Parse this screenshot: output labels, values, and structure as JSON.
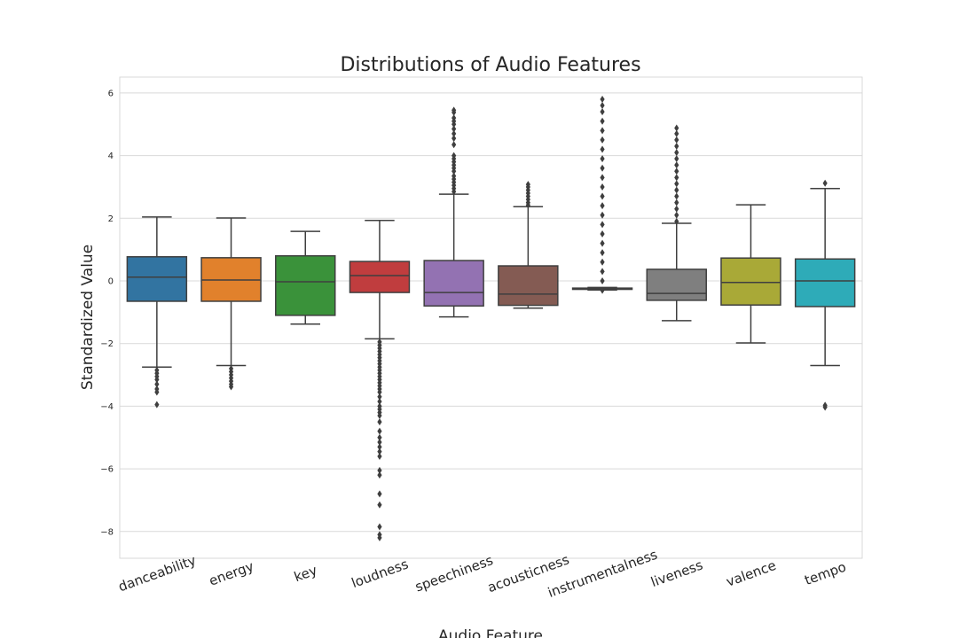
{
  "chart_data": {
    "type": "box",
    "title": "Distributions of Audio Features",
    "xlabel": "Audio Feature",
    "ylabel": "Standardized Value",
    "ylim": [
      -8.9,
      6.5
    ],
    "yticks": [
      6,
      4,
      2,
      0,
      -2,
      -4,
      -6,
      -8
    ],
    "ytick_labels": [
      "6",
      "4",
      "2",
      "0",
      "−2",
      "−4",
      "−6",
      "−8"
    ],
    "grid": true,
    "legend": "none",
    "categories": [
      "danceability",
      "energy",
      "key",
      "loudness",
      "speechiness",
      "acousticness",
      "instrumentalness",
      "liveness",
      "valence",
      "tempo"
    ],
    "boxes": [
      {
        "name": "danceability",
        "color": "#3274a1",
        "whisker_low": -2.75,
        "q1": -0.65,
        "median": 0.12,
        "q3": 0.77,
        "whisker_high": 2.04,
        "outliers": [
          -2.85,
          -2.95,
          -3.05,
          -3.15,
          -3.3,
          -3.45,
          -3.55,
          -3.95
        ]
      },
      {
        "name": "energy",
        "color": "#e1812c",
        "whisker_low": -2.7,
        "q1": -0.65,
        "median": 0.03,
        "q3": 0.74,
        "whisker_high": 2.01,
        "outliers": [
          -2.8,
          -2.9,
          -3.0,
          -3.1,
          -3.2,
          -3.3,
          -3.38
        ]
      },
      {
        "name": "key",
        "color": "#3a923a",
        "whisker_low": -1.38,
        "q1": -1.1,
        "median": -0.03,
        "q3": 0.8,
        "whisker_high": 1.58,
        "outliers": []
      },
      {
        "name": "loudness",
        "color": "#c03d3e",
        "whisker_low": -1.85,
        "q1": -0.37,
        "median": 0.17,
        "q3": 0.62,
        "whisker_high": 1.93,
        "outliers": [
          -1.95,
          -2.05,
          -2.15,
          -2.25,
          -2.35,
          -2.45,
          -2.55,
          -2.65,
          -2.75,
          -2.85,
          -2.95,
          -3.05,
          -3.15,
          -3.25,
          -3.35,
          -3.45,
          -3.55,
          -3.7,
          -3.85,
          -4.0,
          -4.1,
          -4.2,
          -4.3,
          -4.5,
          -4.8,
          -5.0,
          -5.15,
          -5.3,
          -5.45,
          -5.6,
          -6.05,
          -6.2,
          -6.8,
          -7.15,
          -7.85,
          -8.1,
          -8.2
        ]
      },
      {
        "name": "speechiness",
        "color": "#9372b2",
        "whisker_low": -1.15,
        "q1": -0.8,
        "median": -0.37,
        "q3": 0.65,
        "whisker_high": 2.77,
        "outliers": [
          2.85,
          2.95,
          3.05,
          3.15,
          3.25,
          3.35,
          3.5,
          3.6,
          3.7,
          3.8,
          3.9,
          4.0,
          4.35,
          4.55,
          4.7,
          4.85,
          5.0,
          5.1,
          5.2,
          5.38,
          5.45
        ]
      },
      {
        "name": "acousticness",
        "color": "#845b53",
        "whisker_low": -0.87,
        "q1": -0.78,
        "median": -0.42,
        "q3": 0.48,
        "whisker_high": 2.37,
        "outliers": [
          2.42,
          2.5,
          2.6,
          2.7,
          2.8,
          2.9,
          3.0,
          3.08
        ]
      },
      {
        "name": "instrumentalness",
        "color": "#d684bd",
        "whisker_low": -0.29,
        "q1": -0.27,
        "median": -0.25,
        "q3": -0.23,
        "whisker_high": -0.21,
        "outliers": [
          -0.3,
          0.0,
          0.3,
          0.6,
          0.9,
          1.2,
          1.5,
          1.8,
          2.1,
          2.4,
          2.7,
          3.0,
          3.3,
          3.6,
          3.9,
          4.2,
          4.5,
          4.8,
          5.1,
          5.4,
          5.6,
          5.8
        ]
      },
      {
        "name": "liveness",
        "color": "#7f7f7f",
        "whisker_low": -1.27,
        "q1": -0.62,
        "median": -0.4,
        "q3": 0.37,
        "whisker_high": 1.84,
        "outliers": [
          1.9,
          2.1,
          2.3,
          2.5,
          2.7,
          2.9,
          3.1,
          3.3,
          3.5,
          3.7,
          3.9,
          4.1,
          4.3,
          4.5,
          4.7,
          4.88
        ]
      },
      {
        "name": "valence",
        "color": "#a9a937",
        "whisker_low": -1.98,
        "q1": -0.77,
        "median": -0.05,
        "q3": 0.73,
        "whisker_high": 2.43,
        "outliers": []
      },
      {
        "name": "tempo",
        "color": "#2eabb8",
        "whisker_low": -2.7,
        "q1": -0.82,
        "median": 0.0,
        "q3": 0.7,
        "whisker_high": 2.95,
        "outliers": [
          3.12,
          -3.97,
          -4.03
        ]
      }
    ]
  }
}
